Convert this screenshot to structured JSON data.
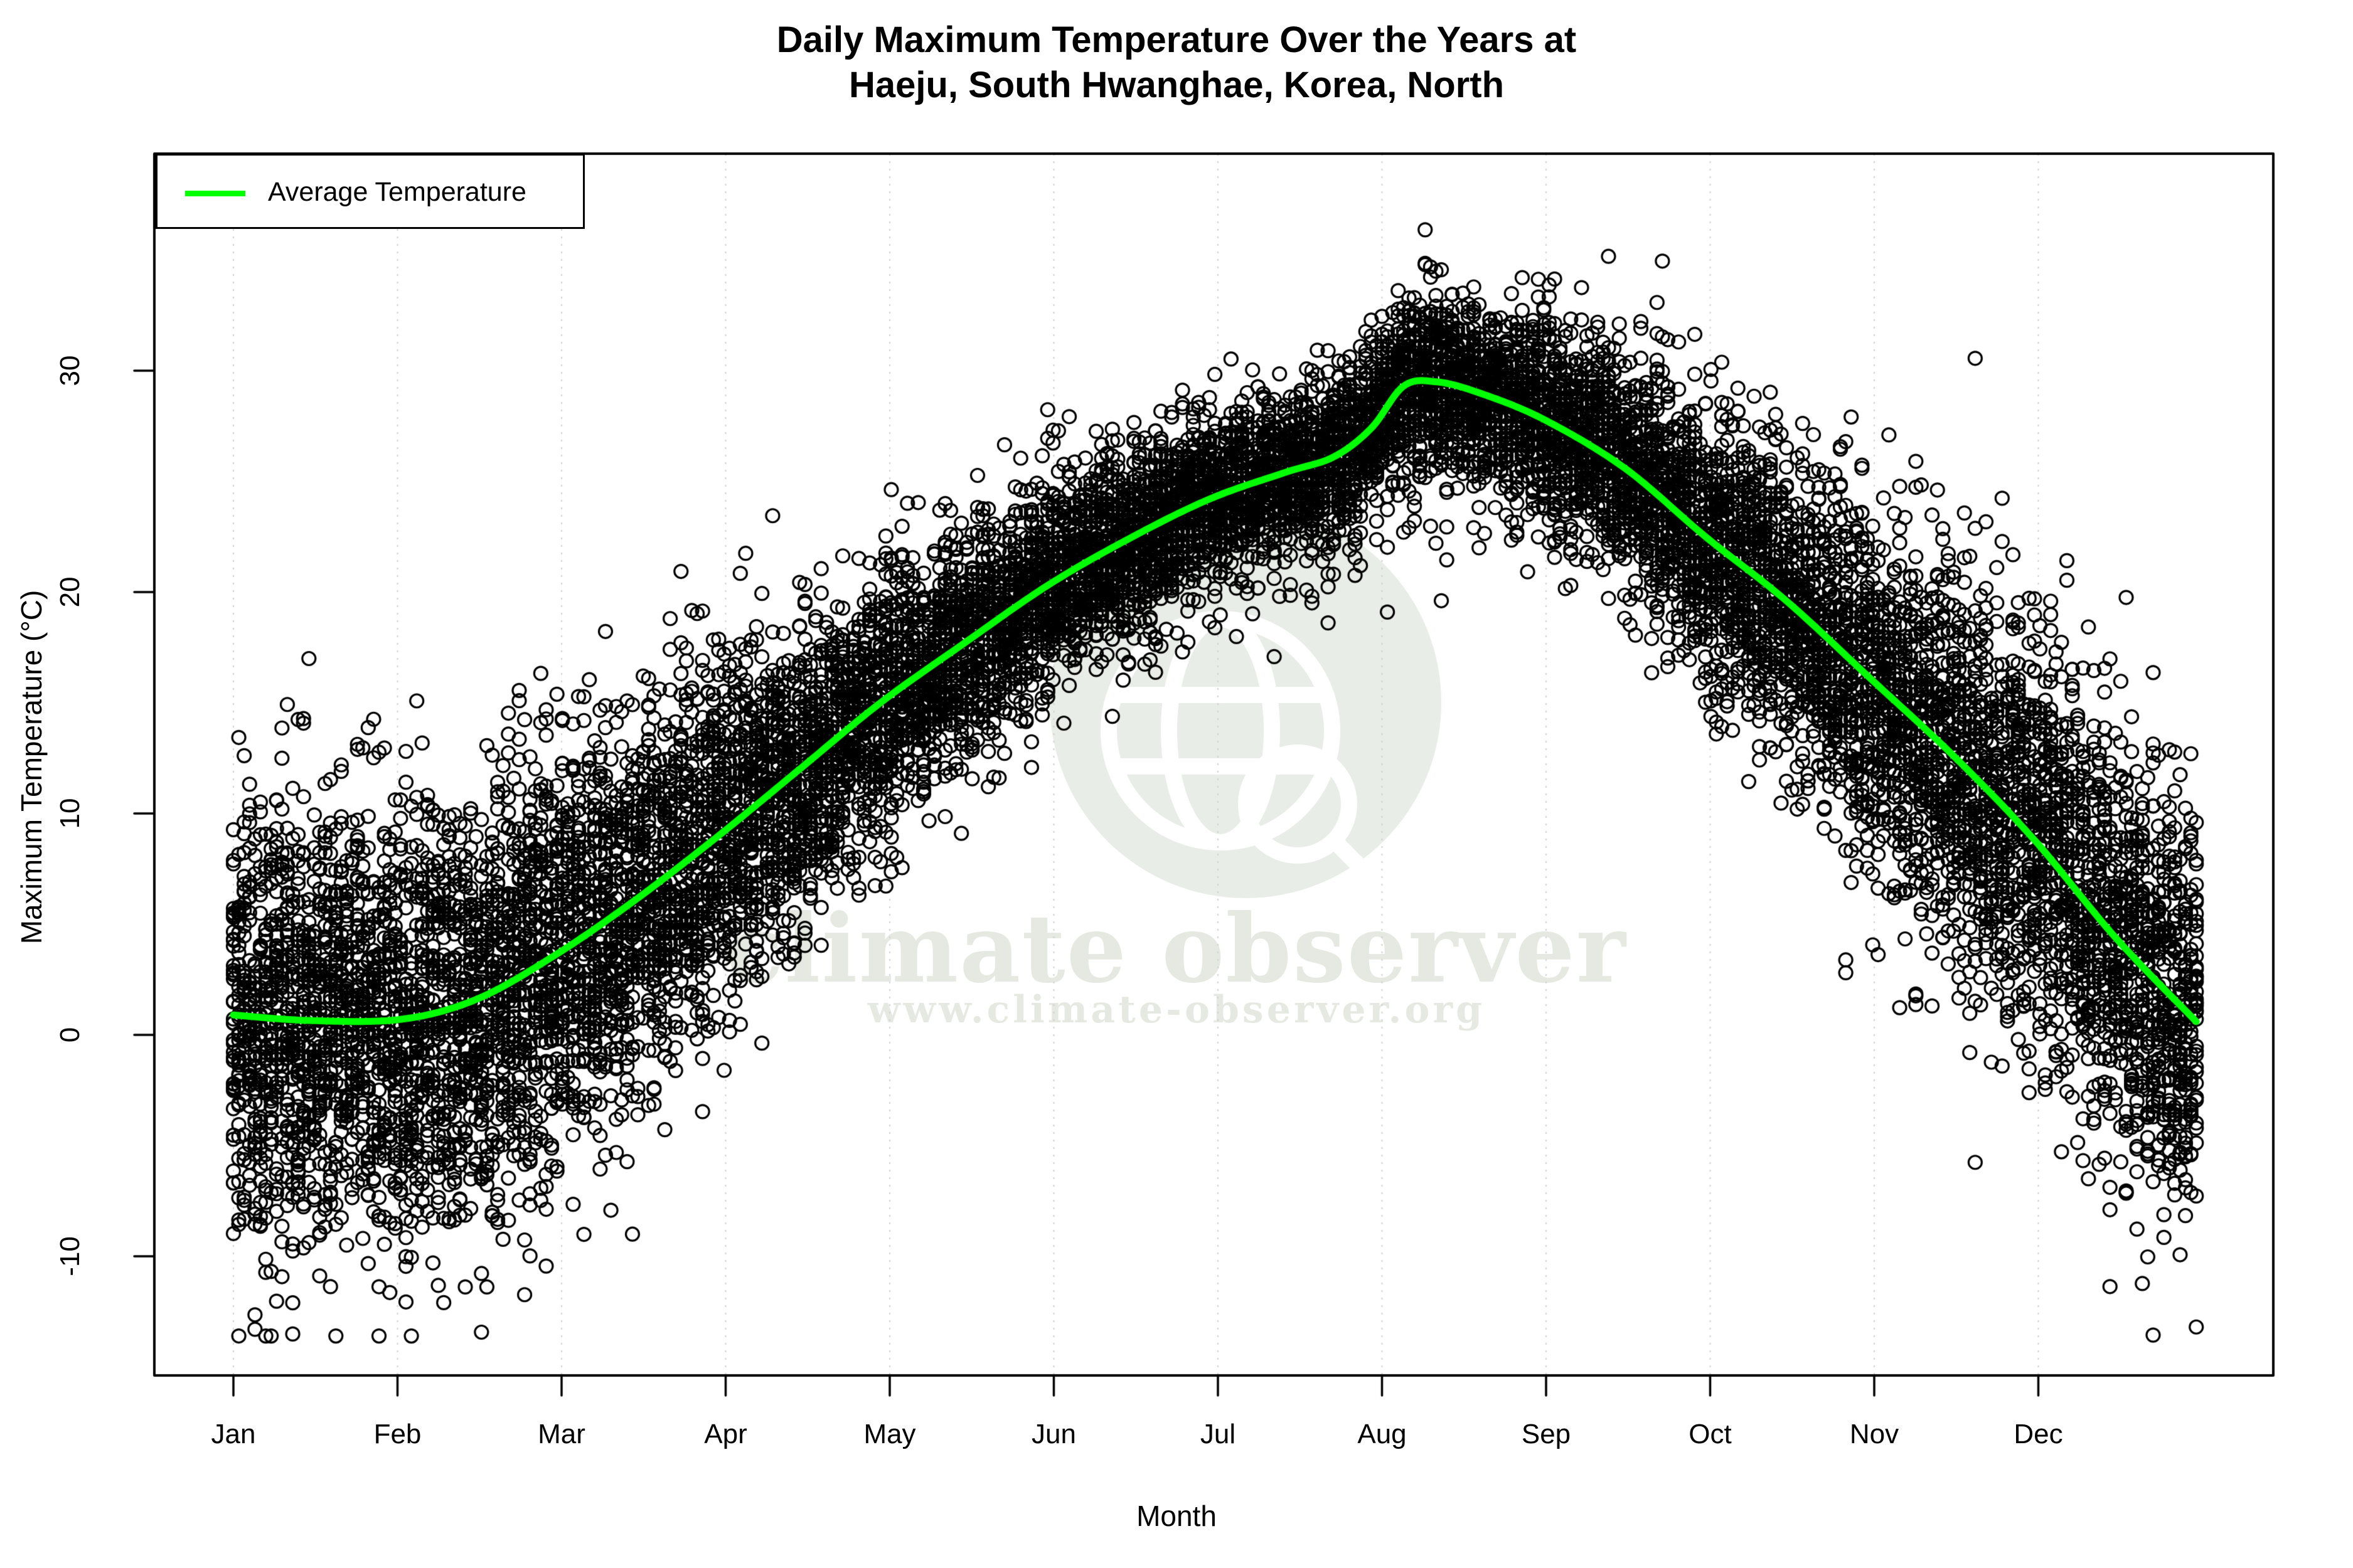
{
  "title": {
    "line1": "Daily Maximum Temperature Over the Years at",
    "line2": "Haeju, South Hwanghae, Korea, North"
  },
  "legend": {
    "label": "Average Temperature"
  },
  "axes": {
    "x_label": "Month",
    "y_label": "Maximum Temperature (°C)",
    "x_ticks": [
      "Jan",
      "Feb",
      "Mar",
      "Apr",
      "May",
      "Jun",
      "Jul",
      "Aug",
      "Sep",
      "Oct",
      "Nov",
      "Dec"
    ],
    "y_ticks": [
      -10,
      0,
      10,
      20,
      30
    ]
  },
  "watermark": {
    "title": "climate observer",
    "url": "www.climate-observer.org",
    "icon": "globe-magnifier-icon",
    "circle_color": "#e9ede7",
    "text_color": "#e6e9e2",
    "icon_stroke_color": "#ffffff"
  },
  "colors": {
    "trend_line": "#00ff00",
    "points": "#000000",
    "grid": "#d2d2d2",
    "frame": "#000000",
    "background": "#ffffff"
  },
  "chart_data": {
    "type": "scatter",
    "title": "Daily Maximum Temperature Over the Years at Haeju, South Hwanghae, Korea, North",
    "xlabel": "Month",
    "ylabel": "Maximum Temperature (°C)",
    "x_unit": "day_of_year",
    "xlim": [
      1,
      365
    ],
    "ylim": [
      -15.5,
      39.8
    ],
    "grid": "vertical-dotted-at-month-starts",
    "legend_position": "top-left",
    "point_style": "open-circle",
    "trend_series": {
      "name": "Average Temperature",
      "points": [
        [
          1,
          0.9
        ],
        [
          15,
          0.65
        ],
        [
          32,
          0.7
        ],
        [
          46,
          1.6
        ],
        [
          60,
          3.5
        ],
        [
          75,
          6.0
        ],
        [
          91,
          9.0
        ],
        [
          106,
          12.0
        ],
        [
          121,
          15.0
        ],
        [
          136,
          17.6
        ],
        [
          152,
          20.3
        ],
        [
          167,
          22.4
        ],
        [
          182,
          24.2
        ],
        [
          196,
          25.4
        ],
        [
          205,
          26.1
        ],
        [
          212,
          27.4
        ],
        [
          218,
          29.3
        ],
        [
          224,
          29.5
        ],
        [
          232,
          29.0
        ],
        [
          244,
          27.8
        ],
        [
          259,
          25.6
        ],
        [
          274,
          22.5
        ],
        [
          289,
          19.6
        ],
        [
          305,
          16.0
        ],
        [
          320,
          12.6
        ],
        [
          335,
          8.8
        ],
        [
          350,
          4.4
        ],
        [
          365,
          0.6
        ]
      ]
    },
    "scatter_model": {
      "n_years": 40,
      "seed": 12345,
      "noise_sd_base": 3.45,
      "noise_sd_amplitude": 1.65,
      "noise_sd_phase_day": 15,
      "low_outlier_prob": 0.035,
      "value_clip": [
        -13.6,
        36.6
      ]
    }
  }
}
